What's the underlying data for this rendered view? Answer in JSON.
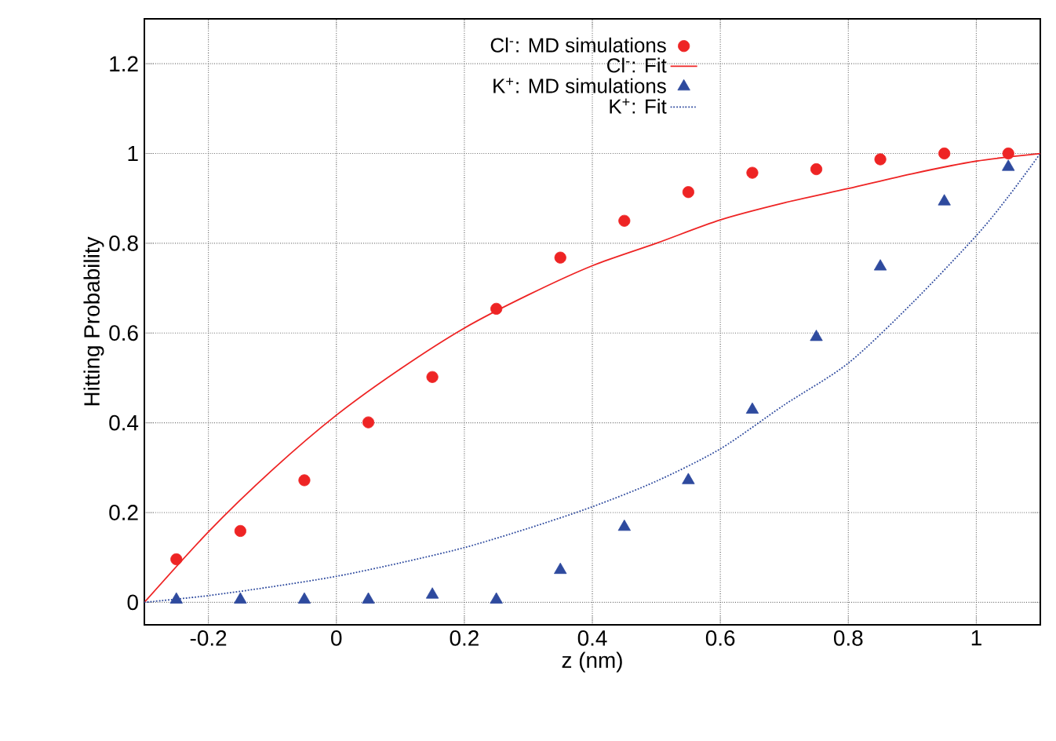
{
  "chart_data": {
    "type": "scatter",
    "xlabel": "z (nm)",
    "ylabel": "Hitting Probability",
    "xlim": [
      -0.3,
      1.1
    ],
    "ylim": [
      -0.05,
      1.3
    ],
    "xticks": [
      -0.2,
      0,
      0.2,
      0.4,
      0.6,
      0.8,
      1
    ],
    "yticks": [
      0,
      0.2,
      0.4,
      0.6,
      0.8,
      1,
      1.2
    ],
    "grid": true,
    "legend": "top",
    "series": [
      {
        "name": "Cl$^{-}$: MD simulations",
        "marker": "circle",
        "color": "#ee2424",
        "x": [
          -0.25,
          -0.15,
          -0.05,
          0.05,
          0.15,
          0.25,
          0.35,
          0.45,
          0.55,
          0.65,
          0.75,
          0.85,
          0.95,
          1.05
        ],
        "values": [
          0.096,
          0.159,
          0.272,
          0.401,
          0.502,
          0.654,
          0.768,
          0.85,
          0.914,
          0.957,
          0.965,
          0.987,
          1.0,
          1.0
        ]
      },
      {
        "name": "Cl$^{-}$: Fit",
        "type": "line",
        "marker": "none",
        "line_style": "solid",
        "color": "#ee2424",
        "x": [
          -0.3,
          -0.2,
          -0.1,
          0,
          0.1,
          0.2,
          0.3,
          0.4,
          0.5,
          0.6,
          0.7,
          0.8,
          0.9,
          1.0,
          1.1
        ],
        "values": [
          0,
          0.157,
          0.295,
          0.417,
          0.52,
          0.611,
          0.685,
          0.75,
          0.8,
          0.852,
          0.89,
          0.922,
          0.955,
          0.983,
          1.0
        ]
      },
      {
        "name": "K$^{+}$: MD simulations",
        "marker": "triangle",
        "color": "#2e4a9e",
        "x": [
          -0.25,
          -0.15,
          -0.05,
          0.05,
          0.15,
          0.25,
          0.35,
          0.45,
          0.55,
          0.65,
          0.75,
          0.85,
          0.95,
          1.05
        ],
        "values": [
          0.006,
          0.006,
          0.006,
          0.006,
          0.017,
          0.006,
          0.072,
          0.168,
          0.272,
          0.429,
          0.591,
          0.748,
          0.893,
          0.97
        ]
      },
      {
        "name": "K$^{+}$: Fit",
        "type": "line",
        "marker": "none",
        "line_style": "dotted",
        "color": "#2e4a9e",
        "x": [
          -0.3,
          -0.2,
          -0.1,
          0,
          0.1,
          0.2,
          0.3,
          0.4,
          0.5,
          0.6,
          0.7,
          0.8,
          0.9,
          1.0,
          1.05,
          1.1
        ],
        "values": [
          0,
          0.015,
          0.035,
          0.058,
          0.088,
          0.122,
          0.165,
          0.213,
          0.27,
          0.342,
          0.44,
          0.533,
          0.667,
          0.817,
          0.904,
          1.0
        ]
      }
    ]
  }
}
